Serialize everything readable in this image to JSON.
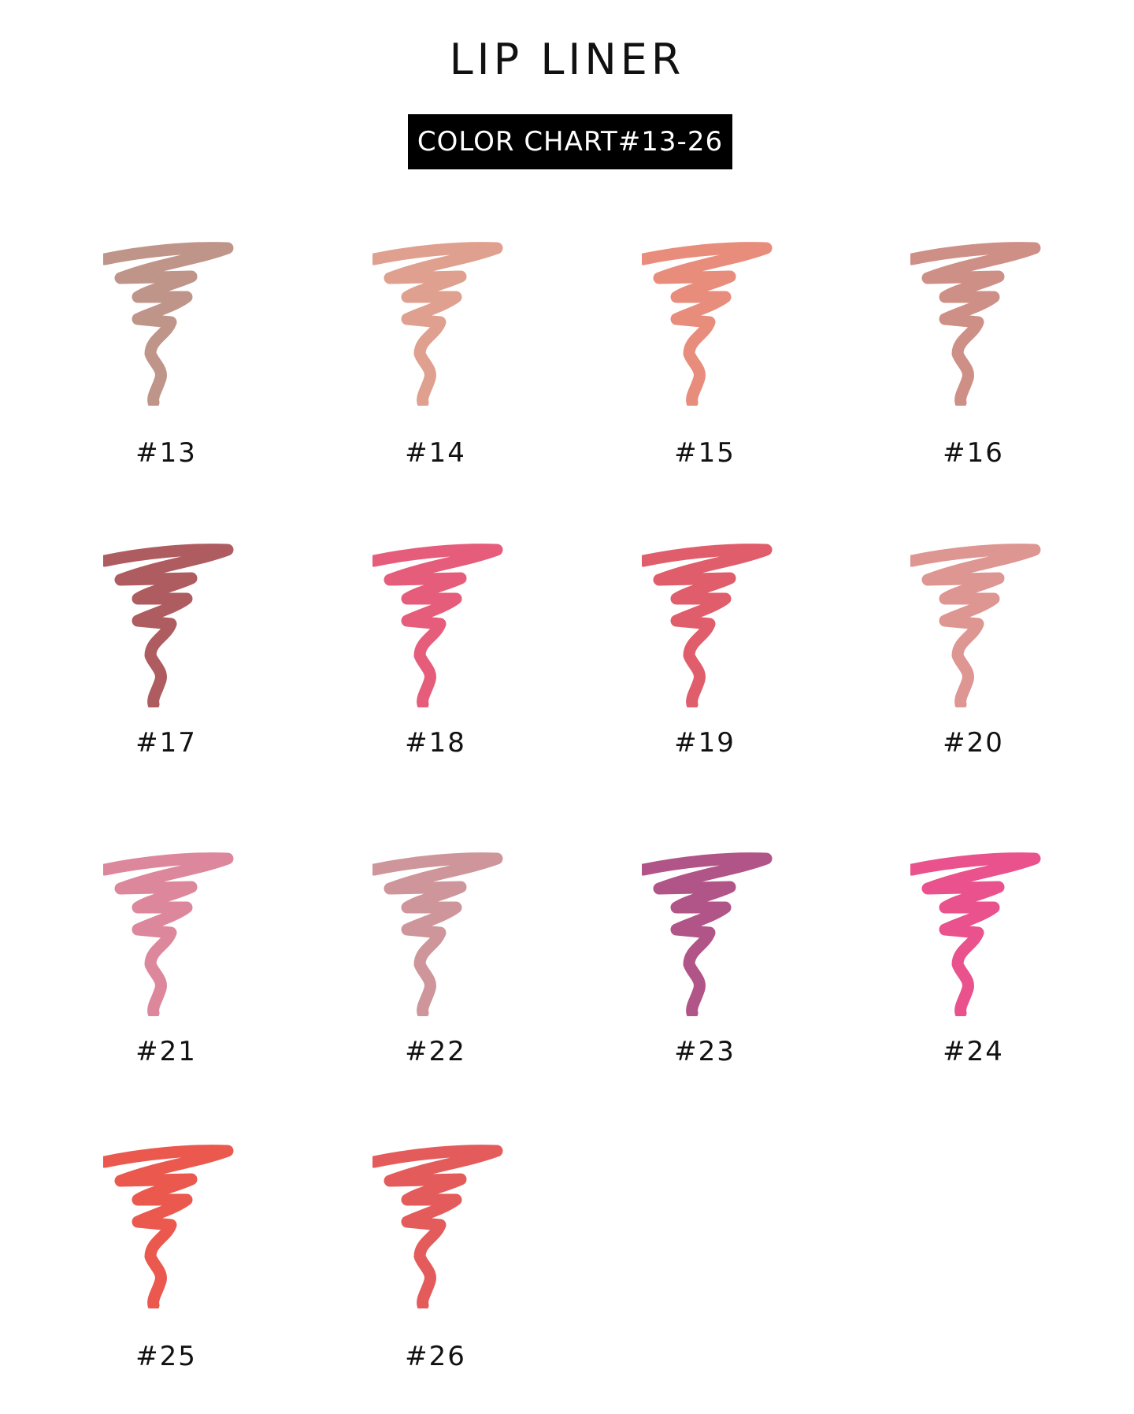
{
  "title": "LIP LINER",
  "badge": "COLOR CHART#13-26",
  "shades": [
    {
      "label": "#13",
      "color": "#b98a7c"
    },
    {
      "label": "#14",
      "color": "#dc9683"
    },
    {
      "label": "#15",
      "color": "#e5806e"
    },
    {
      "label": "#16",
      "color": "#c98479"
    },
    {
      "label": "#17",
      "color": "#a54a4f"
    },
    {
      "label": "#18",
      "color": "#e24b6b"
    },
    {
      "label": "#19",
      "color": "#dd4b5b"
    },
    {
      "label": "#20",
      "color": "#d98b85"
    },
    {
      "label": "#21",
      "color": "#d97a91"
    },
    {
      "label": "#22",
      "color": "#c98b8f"
    },
    {
      "label": "#23",
      "color": "#a8437b"
    },
    {
      "label": "#24",
      "color": "#e83f81"
    },
    {
      "label": "#25",
      "color": "#e8463b"
    },
    {
      "label": "#26",
      "color": "#e04a49"
    }
  ]
}
